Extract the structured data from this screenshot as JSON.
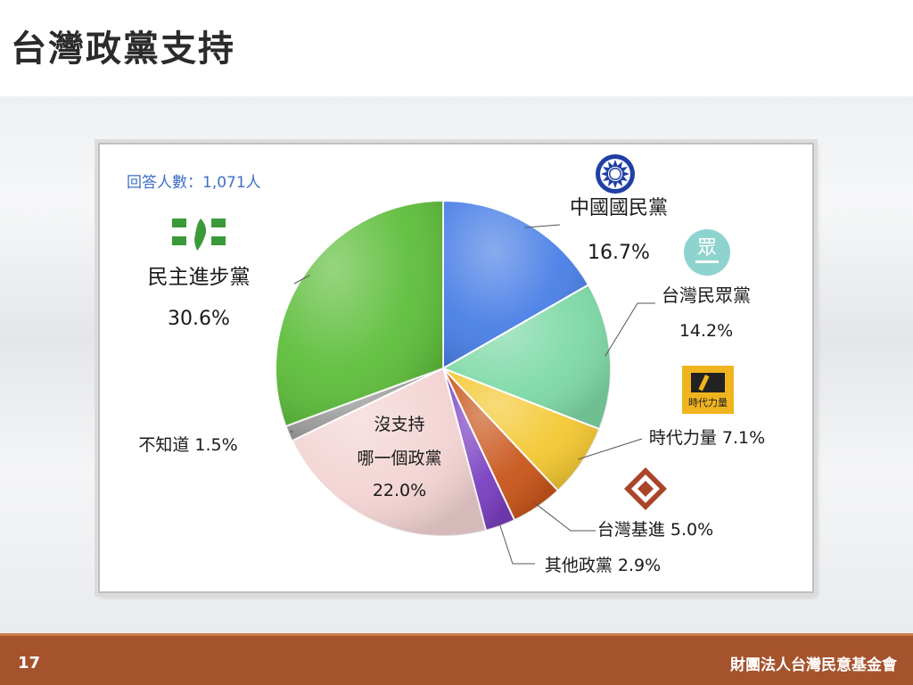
{
  "title": "台灣政黨支持",
  "footer": {
    "page": "17",
    "org": "財團法人台灣民意基金會"
  },
  "colors": {
    "kmt": "#4a7fe6",
    "tpp": "#7ed9a6",
    "npp": "#f3c832",
    "tsp": "#c9561b",
    "other": "#7a3fc0",
    "none": "#f3d3d3",
    "unknown": "#9a9a9a",
    "dpp": "#5fbe3c",
    "footer": "#a5532d"
  },
  "logos": {
    "kmt": "kmt-sun-emblem-icon",
    "tpp": "tpp-logo-icon",
    "npp": "npp-logo-icon",
    "tsp": "tsp-logo-icon",
    "dpp": "dpp-logo-icon",
    "tpp_text": "眾",
    "npp_text": "時代力量"
  },
  "chart_data": {
    "type": "pie",
    "title": "",
    "annotation": "回答人數：1,071人",
    "slices": [
      {
        "key": "kmt",
        "label": "中國國民黨",
        "value": 16.7,
        "value_label": "16.7%"
      },
      {
        "key": "tpp",
        "label": "台灣民眾黨",
        "value": 14.2,
        "value_label": "14.2%"
      },
      {
        "key": "npp",
        "label": "時代力量",
        "value": 7.1,
        "value_label": "7.1%"
      },
      {
        "key": "tsp",
        "label": "台灣基進",
        "value": 5.0,
        "value_label": "5.0%"
      },
      {
        "key": "other",
        "label": "其他政黨",
        "value": 2.9,
        "value_label": "2.9%"
      },
      {
        "key": "none",
        "label": "沒支持\n哪一個政黨",
        "value": 22.0,
        "value_label": "22.0%"
      },
      {
        "key": "unknown",
        "label": "不知道",
        "value": 1.5,
        "value_label": "1.5%"
      },
      {
        "key": "dpp",
        "label": "民主進步黨",
        "value": 30.6,
        "value_label": "30.6%"
      }
    ]
  }
}
